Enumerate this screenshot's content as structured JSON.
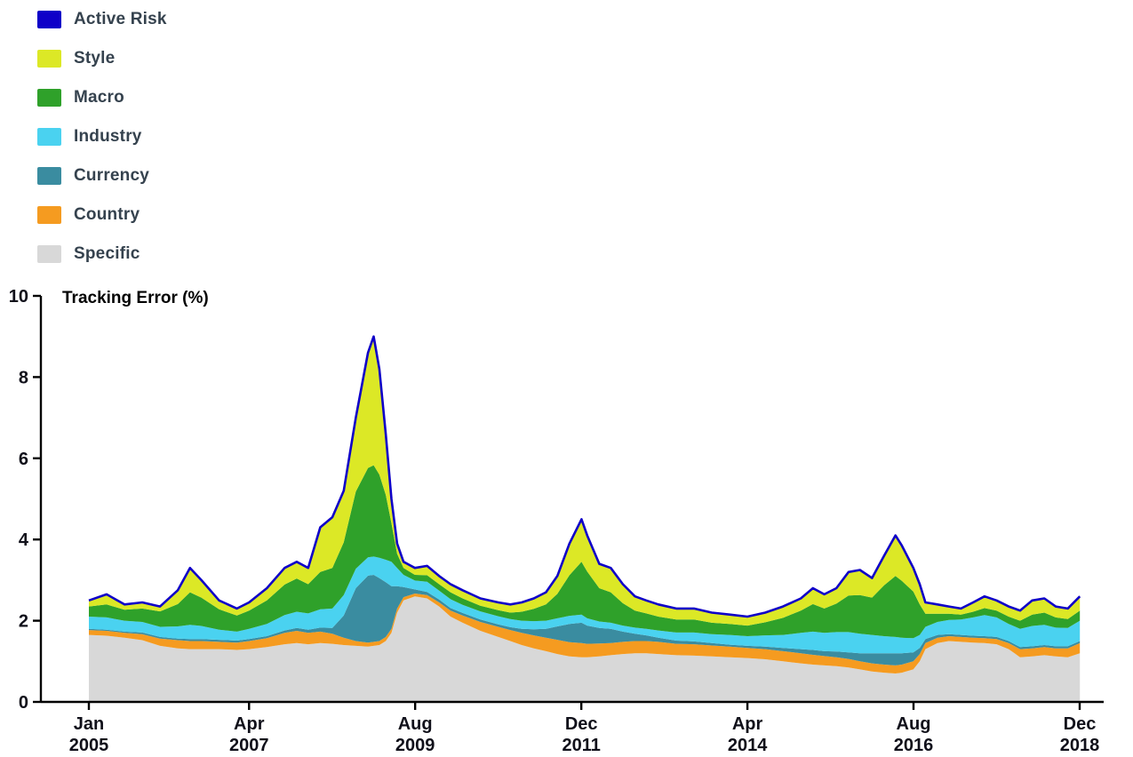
{
  "chart_data": {
    "type": "area",
    "stacked": true,
    "title": "Tracking Error (%)",
    "x_unit": "decimal_year",
    "x_range": [
      2005.0,
      2018.917
    ],
    "y_range": [
      0,
      10
    ],
    "y_ticks": [
      0,
      2,
      4,
      6,
      8,
      10
    ],
    "grid": false,
    "legend_position": "top-left",
    "x_ticks": [
      {
        "month": "Jan",
        "year": "2005",
        "year_value": 2005.0
      },
      {
        "month": "Apr",
        "year": "2007",
        "year_value": 2007.25
      },
      {
        "month": "Aug",
        "year": "2009",
        "year_value": 2009.583
      },
      {
        "month": "Dec",
        "year": "2011",
        "year_value": 2011.917
      },
      {
        "month": "Apr",
        "year": "2014",
        "year_value": 2014.25
      },
      {
        "month": "Aug",
        "year": "2016",
        "year_value": 2016.583
      },
      {
        "month": "Dec",
        "year": "2018",
        "year_value": 2018.917
      }
    ],
    "legend": [
      {
        "label": "Active Risk",
        "color": "#0F00C8"
      },
      {
        "label": "Style",
        "color": "#DCE826"
      },
      {
        "label": "Macro",
        "color": "#2FA12A"
      },
      {
        "label": "Industry",
        "color": "#4AD2F0"
      },
      {
        "label": "Currency",
        "color": "#3A8CA0"
      },
      {
        "label": "Country",
        "color": "#F59B20"
      },
      {
        "label": "Specific",
        "color": "#D8D8D8"
      }
    ],
    "stack_order": [
      "Specific",
      "Country",
      "Currency",
      "Industry",
      "Macro",
      "Style"
    ],
    "total_line": {
      "name": "Active Risk",
      "color": "#0F00C8"
    },
    "x": [
      2005.0,
      2005.25,
      2005.5,
      2005.75,
      2006.0,
      2006.25,
      2006.42,
      2006.58,
      2006.83,
      2007.08,
      2007.25,
      2007.5,
      2007.75,
      2007.92,
      2008.08,
      2008.25,
      2008.42,
      2008.58,
      2008.75,
      2008.92,
      2009.0,
      2009.08,
      2009.17,
      2009.25,
      2009.33,
      2009.42,
      2009.58,
      2009.75,
      2009.92,
      2010.08,
      2010.25,
      2010.5,
      2010.75,
      2010.92,
      2011.08,
      2011.25,
      2011.42,
      2011.58,
      2011.75,
      2011.92,
      2012.0,
      2012.17,
      2012.33,
      2012.5,
      2012.67,
      2012.83,
      2013.0,
      2013.25,
      2013.5,
      2013.75,
      2014.0,
      2014.25,
      2014.5,
      2014.75,
      2015.0,
      2015.17,
      2015.33,
      2015.5,
      2015.67,
      2015.83,
      2016.0,
      2016.17,
      2016.33,
      2016.42,
      2016.58,
      2016.67,
      2016.75,
      2016.92,
      2017.08,
      2017.25,
      2017.42,
      2017.58,
      2017.75,
      2017.92,
      2018.08,
      2018.25,
      2018.42,
      2018.58,
      2018.75,
      2018.92
    ],
    "series": [
      {
        "name": "Specific",
        "color": "#D8D8D8",
        "values": [
          1.65,
          1.63,
          1.58,
          1.52,
          1.38,
          1.32,
          1.3,
          1.3,
          1.3,
          1.28,
          1.3,
          1.35,
          1.42,
          1.45,
          1.42,
          1.45,
          1.43,
          1.4,
          1.38,
          1.36,
          1.38,
          1.4,
          1.5,
          1.7,
          2.2,
          2.5,
          2.6,
          2.55,
          2.35,
          2.1,
          1.95,
          1.75,
          1.6,
          1.5,
          1.4,
          1.32,
          1.25,
          1.18,
          1.12,
          1.1,
          1.1,
          1.12,
          1.15,
          1.18,
          1.2,
          1.2,
          1.18,
          1.15,
          1.14,
          1.12,
          1.1,
          1.08,
          1.05,
          1.0,
          0.95,
          0.92,
          0.9,
          0.88,
          0.85,
          0.8,
          0.75,
          0.72,
          0.7,
          0.72,
          0.8,
          1.0,
          1.3,
          1.45,
          1.5,
          1.48,
          1.46,
          1.45,
          1.42,
          1.3,
          1.1,
          1.12,
          1.15,
          1.12,
          1.1,
          1.2
        ]
      },
      {
        "name": "Country",
        "color": "#F59B20",
        "values": [
          0.12,
          0.12,
          0.12,
          0.15,
          0.18,
          0.2,
          0.2,
          0.2,
          0.18,
          0.18,
          0.2,
          0.22,
          0.28,
          0.3,
          0.28,
          0.28,
          0.25,
          0.18,
          0.12,
          0.1,
          0.1,
          0.1,
          0.1,
          0.1,
          0.1,
          0.08,
          0.07,
          0.08,
          0.1,
          0.15,
          0.18,
          0.22,
          0.25,
          0.27,
          0.3,
          0.32,
          0.33,
          0.35,
          0.35,
          0.35,
          0.33,
          0.32,
          0.3,
          0.3,
          0.3,
          0.3,
          0.3,
          0.28,
          0.28,
          0.27,
          0.26,
          0.25,
          0.25,
          0.25,
          0.25,
          0.24,
          0.23,
          0.22,
          0.21,
          0.2,
          0.2,
          0.2,
          0.2,
          0.2,
          0.2,
          0.18,
          0.15,
          0.13,
          0.12,
          0.12,
          0.12,
          0.12,
          0.13,
          0.15,
          0.2,
          0.2,
          0.2,
          0.2,
          0.22,
          0.25
        ]
      },
      {
        "name": "Currency",
        "color": "#3A8CA0",
        "values": [
          0.03,
          0.03,
          0.03,
          0.04,
          0.04,
          0.04,
          0.05,
          0.05,
          0.05,
          0.05,
          0.05,
          0.05,
          0.06,
          0.07,
          0.08,
          0.1,
          0.14,
          0.55,
          1.3,
          1.65,
          1.65,
          1.55,
          1.35,
          1.05,
          0.55,
          0.25,
          0.1,
          0.08,
          0.07,
          0.06,
          0.06,
          0.06,
          0.06,
          0.07,
          0.1,
          0.15,
          0.22,
          0.33,
          0.45,
          0.5,
          0.45,
          0.38,
          0.35,
          0.25,
          0.18,
          0.14,
          0.1,
          0.08,
          0.07,
          0.06,
          0.05,
          0.05,
          0.06,
          0.08,
          0.1,
          0.12,
          0.12,
          0.14,
          0.16,
          0.2,
          0.25,
          0.28,
          0.3,
          0.28,
          0.22,
          0.15,
          0.1,
          0.07,
          0.05,
          0.05,
          0.05,
          0.05,
          0.05,
          0.05,
          0.05,
          0.05,
          0.05,
          0.05,
          0.05,
          0.05
        ]
      },
      {
        "name": "Industry",
        "color": "#4AD2F0",
        "values": [
          0.3,
          0.3,
          0.27,
          0.26,
          0.25,
          0.3,
          0.35,
          0.32,
          0.25,
          0.22,
          0.25,
          0.3,
          0.38,
          0.4,
          0.4,
          0.45,
          0.48,
          0.5,
          0.48,
          0.45,
          0.45,
          0.5,
          0.55,
          0.6,
          0.45,
          0.3,
          0.22,
          0.25,
          0.22,
          0.22,
          0.2,
          0.2,
          0.2,
          0.2,
          0.2,
          0.2,
          0.2,
          0.2,
          0.2,
          0.2,
          0.18,
          0.16,
          0.15,
          0.15,
          0.15,
          0.16,
          0.18,
          0.2,
          0.22,
          0.22,
          0.24,
          0.24,
          0.28,
          0.32,
          0.4,
          0.45,
          0.45,
          0.48,
          0.5,
          0.48,
          0.45,
          0.42,
          0.4,
          0.38,
          0.35,
          0.32,
          0.3,
          0.32,
          0.35,
          0.38,
          0.45,
          0.52,
          0.48,
          0.42,
          0.45,
          0.5,
          0.5,
          0.46,
          0.45,
          0.5
        ]
      },
      {
        "name": "Macro",
        "color": "#2FA12A",
        "values": [
          0.25,
          0.32,
          0.27,
          0.33,
          0.38,
          0.55,
          0.8,
          0.7,
          0.5,
          0.4,
          0.45,
          0.58,
          0.75,
          0.82,
          0.72,
          0.92,
          1.0,
          1.3,
          1.9,
          2.2,
          2.25,
          2.05,
          1.6,
          0.95,
          0.35,
          0.17,
          0.14,
          0.16,
          0.16,
          0.17,
          0.16,
          0.14,
          0.15,
          0.16,
          0.22,
          0.3,
          0.4,
          0.6,
          1.0,
          1.3,
          1.15,
          0.82,
          0.75,
          0.55,
          0.42,
          0.38,
          0.34,
          0.32,
          0.32,
          0.28,
          0.27,
          0.26,
          0.32,
          0.42,
          0.55,
          0.68,
          0.6,
          0.7,
          0.9,
          0.95,
          0.92,
          1.25,
          1.5,
          1.4,
          1.15,
          0.75,
          0.32,
          0.2,
          0.15,
          0.12,
          0.14,
          0.17,
          0.17,
          0.18,
          0.2,
          0.28,
          0.3,
          0.25,
          0.22,
          0.25
        ]
      },
      {
        "name": "Style",
        "color": "#DCE826",
        "values": [
          0.15,
          0.25,
          0.13,
          0.15,
          0.12,
          0.34,
          0.6,
          0.43,
          0.22,
          0.17,
          0.2,
          0.3,
          0.41,
          0.41,
          0.4,
          1.1,
          1.25,
          1.27,
          1.82,
          2.84,
          3.17,
          2.6,
          1.5,
          0.6,
          0.25,
          0.15,
          0.17,
          0.23,
          0.2,
          0.2,
          0.2,
          0.18,
          0.19,
          0.2,
          0.23,
          0.26,
          0.3,
          0.44,
          0.78,
          1.05,
          0.89,
          0.6,
          0.6,
          0.47,
          0.35,
          0.32,
          0.3,
          0.27,
          0.27,
          0.25,
          0.23,
          0.22,
          0.24,
          0.28,
          0.3,
          0.39,
          0.35,
          0.38,
          0.58,
          0.62,
          0.48,
          0.73,
          1.0,
          0.87,
          0.58,
          0.5,
          0.28,
          0.23,
          0.18,
          0.15,
          0.23,
          0.29,
          0.25,
          0.25,
          0.25,
          0.35,
          0.35,
          0.27,
          0.26,
          0.35
        ]
      }
    ]
  }
}
